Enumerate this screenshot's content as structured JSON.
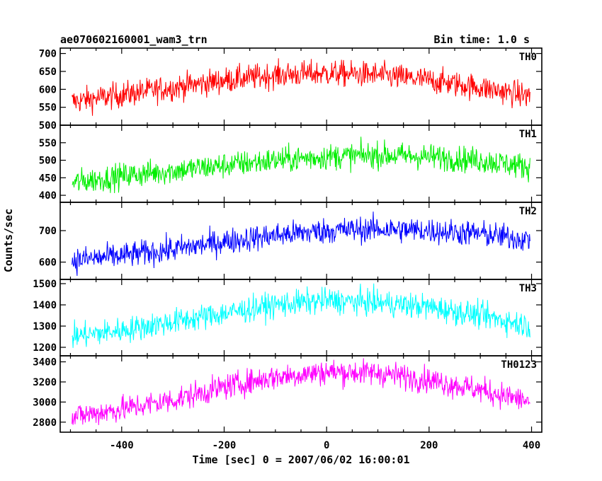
{
  "chart_data": {
    "type": "line",
    "title": "ae070602160001_wam3_trn",
    "subtitle": "Bin time: 1.0 s",
    "xlabel": "Time [sec] 0 = 2007/06/02 16:00:01",
    "ylabel": "Counts/sec",
    "xlim": [
      -520,
      420
    ],
    "xticks": [
      -400,
      -200,
      0,
      200,
      400
    ],
    "grid": false,
    "panels": [
      {
        "name": "TH0",
        "color": "#ff0000",
        "ylim": [
          500,
          715
        ],
        "yticks": [
          500,
          550,
          600,
          650,
          700
        ],
        "x": [
          -500,
          -400,
          -300,
          -200,
          -100,
          0,
          100,
          200,
          300,
          400
        ],
        "y": [
          565,
          585,
          605,
          625,
          640,
          645,
          640,
          625,
          605,
          580
        ]
      },
      {
        "name": "TH1",
        "color": "#00ee00",
        "ylim": [
          380,
          600
        ],
        "yticks": [
          400,
          450,
          500,
          550
        ],
        "x": [
          -500,
          -400,
          -300,
          -200,
          -100,
          0,
          100,
          200,
          300,
          400
        ],
        "y": [
          435,
          455,
          470,
          485,
          500,
          510,
          515,
          510,
          500,
          480
        ]
      },
      {
        "name": "TH2",
        "color": "#0000ff",
        "ylim": [
          545,
          790
        ],
        "yticks": [
          600,
          700
        ],
        "x": [
          -500,
          -400,
          -300,
          -200,
          -100,
          0,
          100,
          200,
          300,
          400
        ],
        "y": [
          605,
          620,
          640,
          665,
          685,
          700,
          705,
          700,
          690,
          670
        ]
      },
      {
        "name": "TH3",
        "color": "#00ffff",
        "ylim": [
          1160,
          1520
        ],
        "yticks": [
          1200,
          1300,
          1400,
          1500
        ],
        "x": [
          -500,
          -400,
          -300,
          -200,
          -100,
          0,
          100,
          200,
          300,
          400
        ],
        "y": [
          1250,
          1280,
          1320,
          1360,
          1400,
          1420,
          1410,
          1390,
          1350,
          1300
        ]
      },
      {
        "name": "TH0123",
        "color": "#ff00ff",
        "ylim": [
          2700,
          3460
        ],
        "yticks": [
          2800,
          3000,
          3200,
          3400
        ],
        "x": [
          -500,
          -400,
          -300,
          -200,
          -100,
          0,
          100,
          200,
          300,
          400
        ],
        "y": [
          2850,
          2930,
          3020,
          3150,
          3250,
          3300,
          3290,
          3220,
          3120,
          3000
        ]
      }
    ]
  }
}
